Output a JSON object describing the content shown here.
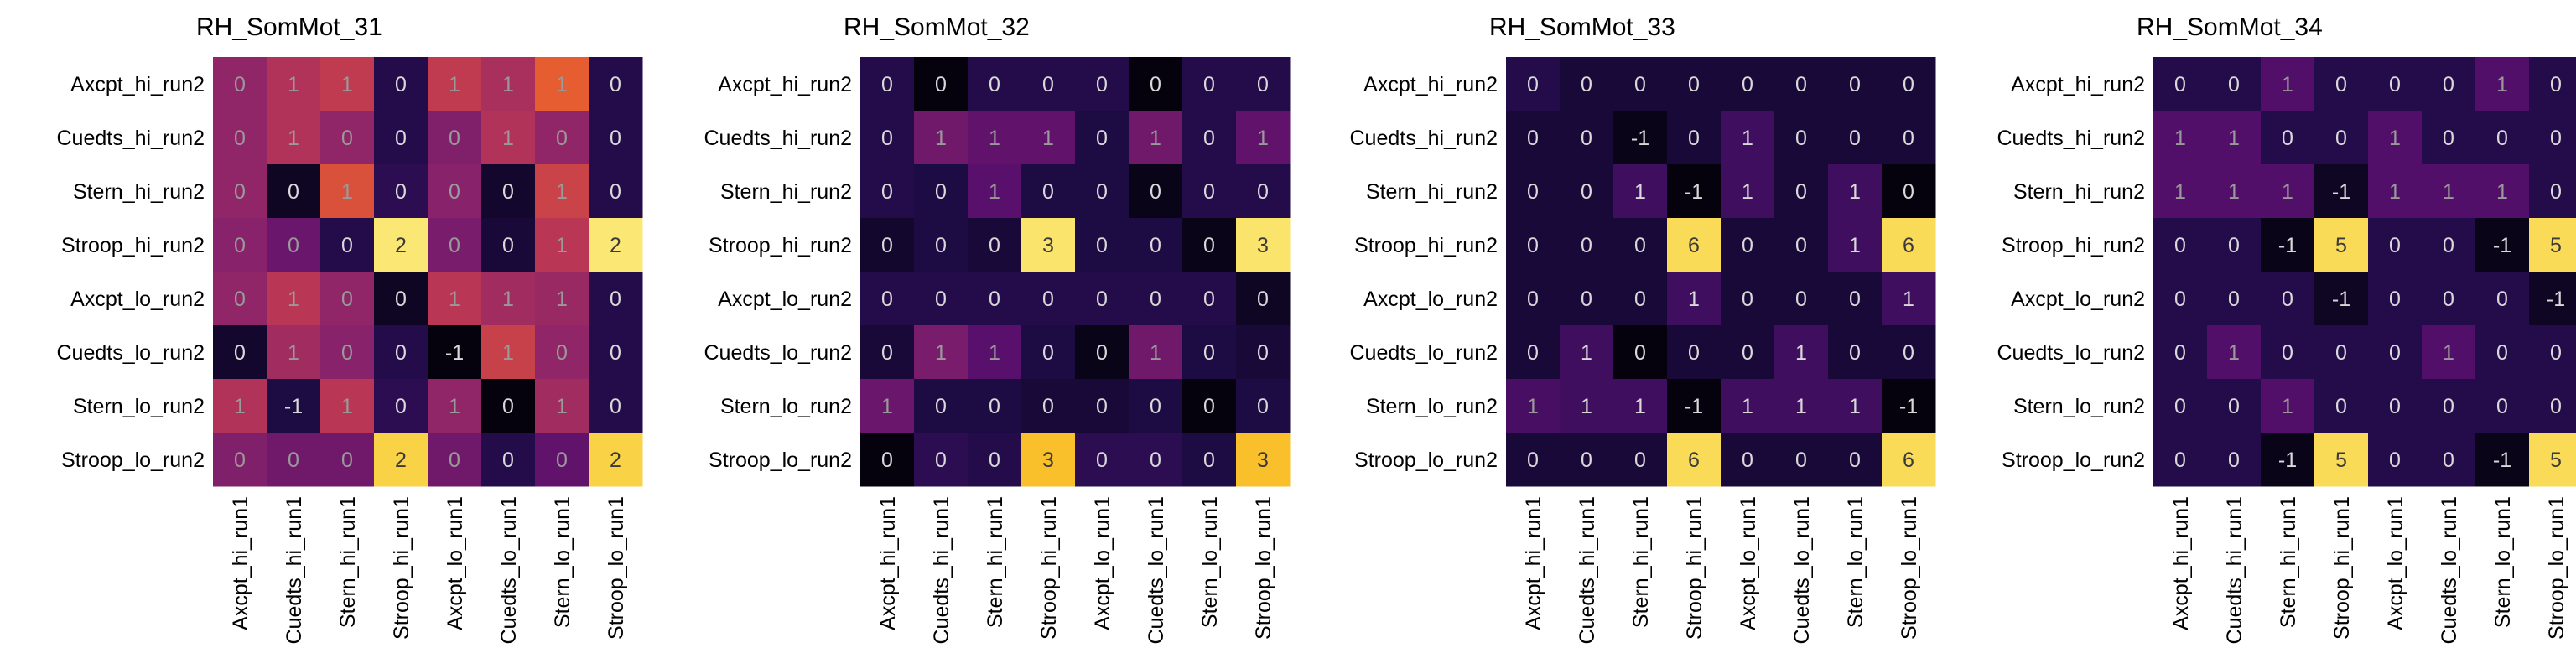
{
  "chart_data": [
    {
      "type": "heatmap",
      "title": "RH_SomMot_31",
      "rows": [
        "Axcpt_hi_run2",
        "Cuedts_hi_run2",
        "Stern_hi_run2",
        "Stroop_hi_run2",
        "Axcpt_lo_run2",
        "Cuedts_lo_run2",
        "Stern_lo_run2",
        "Stroop_lo_run2"
      ],
      "columns": [
        "Axcpt_hi_run1",
        "Cuedts_hi_run1",
        "Stern_hi_run1",
        "Stroop_hi_run1",
        "Axcpt_lo_run1",
        "Cuedts_lo_run1",
        "Stern_lo_run1",
        "Stroop_lo_run1"
      ],
      "labels": [
        [
          "0",
          "1",
          "1",
          "0",
          "1",
          "1",
          "1",
          "0"
        ],
        [
          "0",
          "1",
          "0",
          "0",
          "0",
          "1",
          "0",
          "0"
        ],
        [
          "0",
          "0",
          "1",
          "0",
          "0",
          "0",
          "1",
          "0"
        ],
        [
          "0",
          "0",
          "0",
          "2",
          "0",
          "0",
          "1",
          "2"
        ],
        [
          "0",
          "1",
          "0",
          "0",
          "1",
          "1",
          "1",
          "0"
        ],
        [
          "0",
          "1",
          "0",
          "0",
          "-1",
          "1",
          "0",
          "0"
        ],
        [
          "1",
          "-1",
          "1",
          "0",
          "1",
          "0",
          "1",
          "0"
        ],
        [
          "0",
          "0",
          "0",
          "2",
          "0",
          "0",
          "0",
          "2"
        ]
      ],
      "intensity": [
        [
          0.4,
          0.48,
          0.52,
          0.14,
          0.52,
          0.46,
          0.64,
          0.14
        ],
        [
          0.4,
          0.48,
          0.4,
          0.14,
          0.36,
          0.48,
          0.4,
          0.14
        ],
        [
          0.4,
          0.06,
          0.6,
          0.16,
          0.38,
          0.08,
          0.55,
          0.14
        ],
        [
          0.38,
          0.3,
          0.14,
          0.95,
          0.34,
          0.1,
          0.5,
          0.95
        ],
        [
          0.4,
          0.5,
          0.4,
          0.06,
          0.5,
          0.44,
          0.42,
          0.14
        ],
        [
          0.08,
          0.44,
          0.38,
          0.14,
          0.02,
          0.54,
          0.4,
          0.14
        ],
        [
          0.48,
          0.12,
          0.5,
          0.16,
          0.4,
          0.02,
          0.44,
          0.14
        ],
        [
          0.36,
          0.32,
          0.32,
          0.9,
          0.32,
          0.14,
          0.28,
          0.9
        ]
      ]
    },
    {
      "type": "heatmap",
      "title": "RH_SomMot_32",
      "rows": [
        "Axcpt_hi_run2",
        "Cuedts_hi_run2",
        "Stern_hi_run2",
        "Stroop_hi_run2",
        "Axcpt_lo_run2",
        "Cuedts_lo_run2",
        "Stern_lo_run2",
        "Stroop_lo_run2"
      ],
      "columns": [
        "Axcpt_hi_run1",
        "Cuedts_hi_run1",
        "Stern_hi_run1",
        "Stroop_hi_run1",
        "Axcpt_lo_run1",
        "Cuedts_lo_run1",
        "Stern_lo_run1",
        "Stroop_lo_run1"
      ],
      "labels": [
        [
          "0",
          "0",
          "0",
          "0",
          "0",
          "0",
          "0",
          "0"
        ],
        [
          "0",
          "1",
          "1",
          "1",
          "0",
          "1",
          "0",
          "1"
        ],
        [
          "0",
          "0",
          "1",
          "0",
          "0",
          "0",
          "0",
          "0"
        ],
        [
          "0",
          "0",
          "0",
          "3",
          "0",
          "0",
          "0",
          "3"
        ],
        [
          "0",
          "0",
          "0",
          "0",
          "0",
          "0",
          "0",
          "0"
        ],
        [
          "0",
          "1",
          "1",
          "0",
          "0",
          "1",
          "0",
          "0"
        ],
        [
          "1",
          "0",
          "0",
          "0",
          "0",
          "0",
          "0",
          "0"
        ],
        [
          "0",
          "0",
          "0",
          "3",
          "0",
          "0",
          "0",
          "3"
        ]
      ],
      "intensity": [
        [
          0.14,
          0.02,
          0.14,
          0.14,
          0.14,
          0.02,
          0.14,
          0.14
        ],
        [
          0.14,
          0.32,
          0.28,
          0.28,
          0.12,
          0.32,
          0.14,
          0.28
        ],
        [
          0.14,
          0.12,
          0.26,
          0.12,
          0.12,
          0.04,
          0.14,
          0.14
        ],
        [
          0.08,
          0.12,
          0.1,
          0.94,
          0.12,
          0.12,
          0.04,
          0.94
        ],
        [
          0.14,
          0.14,
          0.14,
          0.14,
          0.14,
          0.14,
          0.14,
          0.06
        ],
        [
          0.1,
          0.34,
          0.26,
          0.12,
          0.04,
          0.32,
          0.12,
          0.1
        ],
        [
          0.3,
          0.12,
          0.12,
          0.1,
          0.1,
          0.12,
          0.02,
          0.12
        ],
        [
          0.02,
          0.16,
          0.14,
          0.86,
          0.16,
          0.16,
          0.12,
          0.86
        ]
      ]
    },
    {
      "type": "heatmap",
      "title": "RH_SomMot_33",
      "rows": [
        "Axcpt_hi_run2",
        "Cuedts_hi_run2",
        "Stern_hi_run2",
        "Stroop_hi_run2",
        "Axcpt_lo_run2",
        "Cuedts_lo_run2",
        "Stern_lo_run2",
        "Stroop_lo_run2"
      ],
      "columns": [
        "Axcpt_hi_run1",
        "Cuedts_hi_run1",
        "Stern_hi_run1",
        "Stroop_hi_run1",
        "Axcpt_lo_run1",
        "Cuedts_lo_run1",
        "Stern_lo_run1",
        "Stroop_lo_run1"
      ],
      "labels": [
        [
          "0",
          "0",
          "0",
          "0",
          "0",
          "0",
          "0",
          "0"
        ],
        [
          "0",
          "0",
          "-1",
          "0",
          "1",
          "0",
          "0",
          "0"
        ],
        [
          "0",
          "0",
          "1",
          "-1",
          "1",
          "0",
          "1",
          "0"
        ],
        [
          "0",
          "0",
          "0",
          "6",
          "0",
          "0",
          "1",
          "6"
        ],
        [
          "0",
          "0",
          "0",
          "1",
          "0",
          "0",
          "0",
          "1"
        ],
        [
          "0",
          "1",
          "0",
          "0",
          "0",
          "1",
          "0",
          "0"
        ],
        [
          "1",
          "1",
          "1",
          "-1",
          "1",
          "1",
          "1",
          "-1"
        ],
        [
          "0",
          "0",
          "0",
          "6",
          "0",
          "0",
          "0",
          "6"
        ]
      ],
      "intensity": [
        [
          0.14,
          0.1,
          0.1,
          0.1,
          0.1,
          0.1,
          0.1,
          0.1
        ],
        [
          0.1,
          0.1,
          0.04,
          0.1,
          0.2,
          0.1,
          0.1,
          0.1
        ],
        [
          0.1,
          0.1,
          0.2,
          0.02,
          0.2,
          0.1,
          0.2,
          0.02
        ],
        [
          0.1,
          0.1,
          0.1,
          0.92,
          0.1,
          0.1,
          0.2,
          0.92
        ],
        [
          0.1,
          0.1,
          0.1,
          0.2,
          0.1,
          0.1,
          0.1,
          0.2
        ],
        [
          0.1,
          0.2,
          0.02,
          0.1,
          0.1,
          0.2,
          0.1,
          0.1
        ],
        [
          0.22,
          0.2,
          0.2,
          0.02,
          0.2,
          0.2,
          0.2,
          0.02
        ],
        [
          0.1,
          0.1,
          0.1,
          0.92,
          0.1,
          0.1,
          0.1,
          0.92
        ]
      ]
    },
    {
      "type": "heatmap",
      "title": "RH_SomMot_34",
      "rows": [
        "Axcpt_hi_run2",
        "Cuedts_hi_run2",
        "Stern_hi_run2",
        "Stroop_hi_run2",
        "Axcpt_lo_run2",
        "Cuedts_lo_run2",
        "Stern_lo_run2",
        "Stroop_lo_run2"
      ],
      "columns": [
        "Axcpt_hi_run1",
        "Cuedts_hi_run1",
        "Stern_hi_run1",
        "Stroop_hi_run1",
        "Axcpt_lo_run1",
        "Cuedts_lo_run1",
        "Stern_lo_run1",
        "Stroop_lo_run1"
      ],
      "labels": [
        [
          "0",
          "0",
          "1",
          "0",
          "0",
          "0",
          "1",
          "0"
        ],
        [
          "1",
          "1",
          "0",
          "0",
          "1",
          "0",
          "0",
          "0"
        ],
        [
          "1",
          "1",
          "1",
          "-1",
          "1",
          "1",
          "1",
          "0"
        ],
        [
          "0",
          "0",
          "-1",
          "5",
          "0",
          "0",
          "-1",
          "5"
        ],
        [
          "0",
          "0",
          "0",
          "-1",
          "0",
          "0",
          "0",
          "-1"
        ],
        [
          "0",
          "1",
          "0",
          "0",
          "0",
          "1",
          "0",
          "0"
        ],
        [
          "0",
          "0",
          "1",
          "0",
          "0",
          "0",
          "0",
          "0"
        ],
        [
          "0",
          "0",
          "-1",
          "5",
          "0",
          "0",
          "-1",
          "5"
        ]
      ],
      "intensity": [
        [
          0.14,
          0.14,
          0.24,
          0.14,
          0.14,
          0.14,
          0.24,
          0.14
        ],
        [
          0.24,
          0.24,
          0.14,
          0.14,
          0.24,
          0.14,
          0.14,
          0.14
        ],
        [
          0.24,
          0.24,
          0.24,
          0.06,
          0.24,
          0.24,
          0.24,
          0.14
        ],
        [
          0.14,
          0.14,
          0.04,
          0.92,
          0.14,
          0.14,
          0.04,
          0.92
        ],
        [
          0.14,
          0.14,
          0.14,
          0.06,
          0.14,
          0.14,
          0.14,
          0.06
        ],
        [
          0.14,
          0.24,
          0.14,
          0.14,
          0.14,
          0.24,
          0.14,
          0.14
        ],
        [
          0.14,
          0.14,
          0.24,
          0.14,
          0.14,
          0.14,
          0.14,
          0.14
        ],
        [
          0.14,
          0.14,
          0.04,
          0.92,
          0.14,
          0.14,
          0.04,
          0.92
        ]
      ]
    }
  ]
}
